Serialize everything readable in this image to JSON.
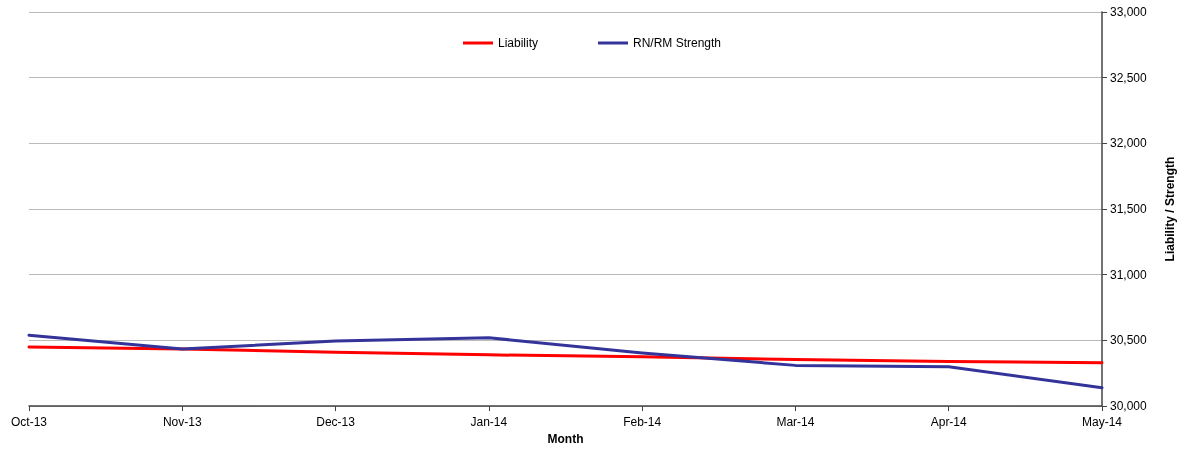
{
  "chart_data": {
    "type": "line",
    "xlabel": "Month",
    "ylabel": "Liability / Strength",
    "categories": [
      "Oct-13",
      "Nov-13",
      "Dec-13",
      "Jan-14",
      "Feb-14",
      "Mar-14",
      "Apr-14",
      "May-14"
    ],
    "series": [
      {
        "name": "Liability",
        "color": "#ff0000",
        "values": [
          30450,
          30435,
          30410,
          30390,
          30375,
          30355,
          30340,
          30330
        ]
      },
      {
        "name": "RN/RM Strength",
        "color": "#333399",
        "values": [
          30540,
          30435,
          30495,
          30520,
          30405,
          30310,
          30300,
          30140
        ]
      }
    ],
    "ylim": [
      30000,
      33000
    ],
    "yticks": [
      {
        "value": 30000,
        "label": "30,000"
      },
      {
        "value": 30500,
        "label": "30,500"
      },
      {
        "value": 31000,
        "label": "31,000"
      },
      {
        "value": 31500,
        "label": "31,500"
      },
      {
        "value": 32000,
        "label": "32,000"
      },
      {
        "value": 32500,
        "label": "32,500"
      },
      {
        "value": 33000,
        "label": "33,000"
      }
    ],
    "grid": "y",
    "legend": "top",
    "marker": "none",
    "line_style": "solid"
  }
}
